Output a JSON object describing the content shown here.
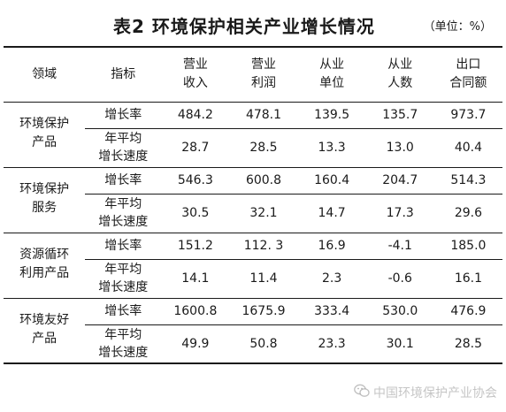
{
  "title": "表2  环境保护相关产业增长情况",
  "unit": "（单位：%）",
  "headers": {
    "domain": "领域",
    "metric": "指标",
    "columns": [
      [
        "营业",
        "收入"
      ],
      [
        "营业",
        "利润"
      ],
      [
        "从业",
        "单位"
      ],
      [
        "从业",
        "人数"
      ],
      [
        "出口",
        "合同额"
      ]
    ]
  },
  "groups": [
    {
      "domain": [
        "环境保护",
        "产品"
      ],
      "rows": [
        {
          "metric": [
            "增长率"
          ],
          "values": [
            "484.2",
            "478.1",
            "139.5",
            "135.7",
            "973.7"
          ]
        },
        {
          "metric": [
            "年平均",
            "增长速度"
          ],
          "values": [
            "28.7",
            "28.5",
            "13.3",
            "13.0",
            "40.4"
          ]
        }
      ]
    },
    {
      "domain": [
        "环境保护",
        "服务"
      ],
      "rows": [
        {
          "metric": [
            "增长率"
          ],
          "values": [
            "546.3",
            "600.8",
            "160.4",
            "204.7",
            "514.3"
          ]
        },
        {
          "metric": [
            "年平均",
            "增长速度"
          ],
          "values": [
            "30.5",
            "32.1",
            "14.7",
            "17.3",
            "29.6"
          ]
        }
      ]
    },
    {
      "domain": [
        "资源循环",
        "利用产品"
      ],
      "rows": [
        {
          "metric": [
            "增长率"
          ],
          "values": [
            "151.2",
            "112. 3",
            "16.9",
            "-4.1",
            "185.0"
          ]
        },
        {
          "metric": [
            "年平均",
            "增长速度"
          ],
          "values": [
            "14.1",
            "11.4",
            "2.3",
            "-0.6",
            "16.1"
          ]
        }
      ]
    },
    {
      "domain": [
        "环境友好",
        "产品"
      ],
      "rows": [
        {
          "metric": [
            "增长率"
          ],
          "values": [
            "1600.8",
            "1675.9",
            "333.4",
            "530.0",
            "476.9"
          ]
        },
        {
          "metric": [
            "年平均",
            "增长速度"
          ],
          "values": [
            "49.9",
            "50.8",
            "23.3",
            "30.1",
            "28.5"
          ]
        }
      ]
    }
  ],
  "watermark": {
    "icon": "wechat-icon",
    "text": "中国环境保护产业协会"
  }
}
